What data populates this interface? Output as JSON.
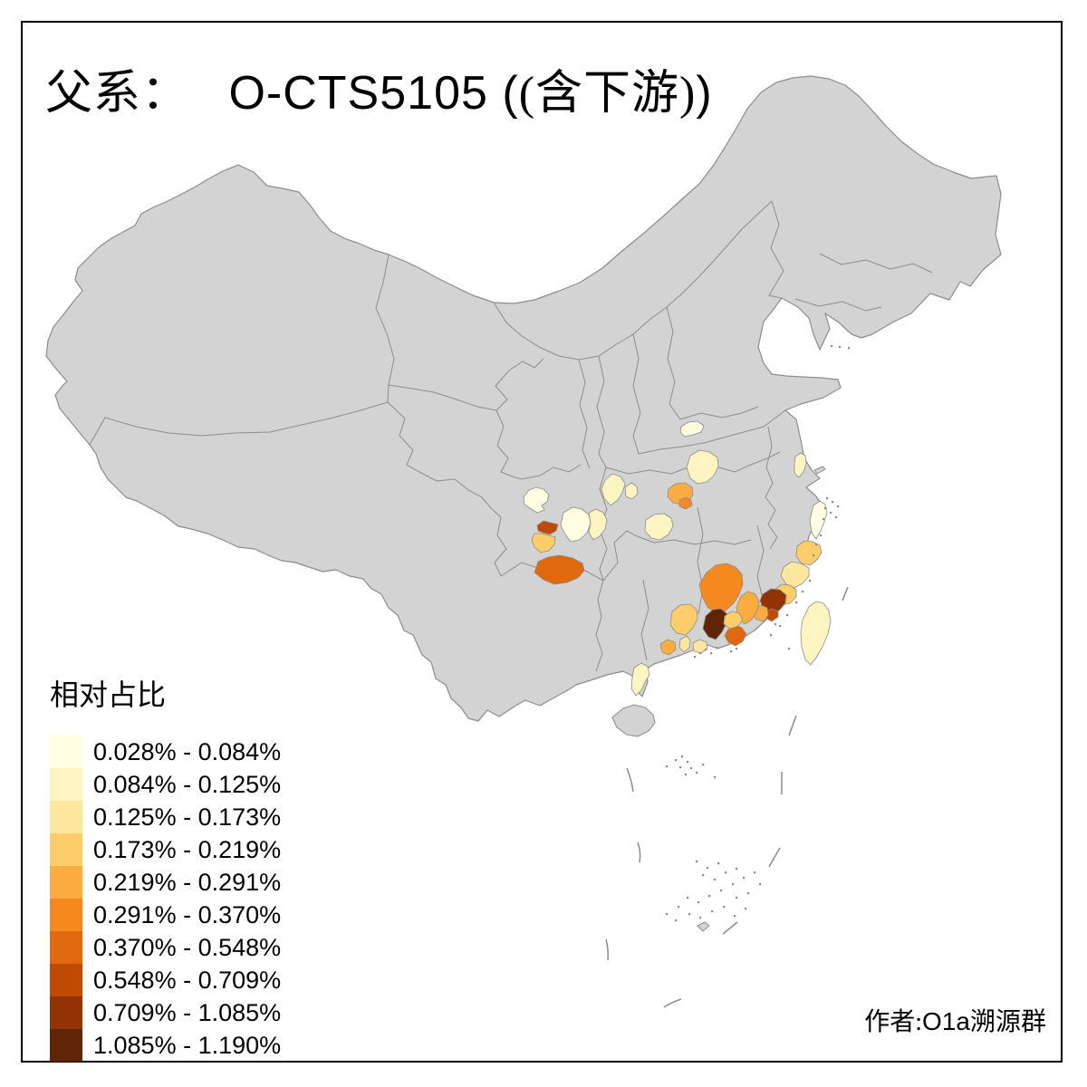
{
  "title": {
    "prefix": "父系：",
    "main": "O-CTS5105",
    "suffix": "(含下游)"
  },
  "legend": {
    "title": "相对占比",
    "classes": [
      {
        "range": "0.028% - 0.084%",
        "color": "#FFFEE3"
      },
      {
        "range": "0.084% - 0.125%",
        "color": "#FDF5C1"
      },
      {
        "range": "0.125% - 0.173%",
        "color": "#FDE69E"
      },
      {
        "range": "0.173% - 0.219%",
        "color": "#FDCD6B"
      },
      {
        "range": "0.219% - 0.291%",
        "color": "#FDAD40"
      },
      {
        "range": "0.291% - 0.370%",
        "color": "#F5881F"
      },
      {
        "range": "0.370% - 0.548%",
        "color": "#E0680F"
      },
      {
        "range": "0.548% - 0.709%",
        "color": "#C14A02"
      },
      {
        "range": "0.709% - 1.085%",
        "color": "#923305"
      },
      {
        "range": "1.085% - 1.190%",
        "color": "#602407"
      }
    ]
  },
  "credit": {
    "prefix": "作者:",
    "main": "O1a",
    "suffix": "溯源群"
  },
  "map": {
    "land_fill": "#D3D3D3",
    "border_color": "#8C8C8C",
    "sea_color": "#FFFFFF",
    "regions": [
      {
        "id": "r1",
        "class": 1,
        "range": "0.028% - 0.084%"
      },
      {
        "id": "r2",
        "class": 8,
        "range": "0.548% - 0.709%"
      },
      {
        "id": "r3",
        "class": 4,
        "range": "0.173% - 0.219%"
      },
      {
        "id": "r4",
        "class": 7,
        "range": "0.370% - 0.548%"
      },
      {
        "id": "r5",
        "class": 1,
        "range": "0.028% - 0.084%"
      },
      {
        "id": "r6",
        "class": 2,
        "range": "0.084% - 0.125%"
      },
      {
        "id": "r7",
        "class": 2,
        "range": "0.084% - 0.125%"
      },
      {
        "id": "r8",
        "class": 1,
        "range": "0.028% - 0.084%"
      },
      {
        "id": "r9",
        "class": 2,
        "range": "0.084% - 0.125%"
      },
      {
        "id": "r10",
        "class": 5,
        "range": "0.219% - 0.291%"
      },
      {
        "id": "r11",
        "class": 6,
        "range": "0.291% - 0.370%"
      },
      {
        "id": "r12",
        "class": 2,
        "range": "0.084% - 0.125%"
      },
      {
        "id": "r13",
        "class": 2,
        "range": "0.084% - 0.125%"
      },
      {
        "id": "r14",
        "class": 2,
        "range": "0.084% - 0.125%"
      },
      {
        "id": "r15",
        "class": 1,
        "range": "0.028% - 0.084%"
      },
      {
        "id": "r16",
        "class": 4,
        "range": "0.173% - 0.219%"
      },
      {
        "id": "r17",
        "class": 3,
        "range": "0.125% - 0.173%"
      },
      {
        "id": "r18",
        "class": 4,
        "range": "0.173% - 0.219%"
      },
      {
        "id": "r19",
        "class": 9,
        "range": "0.709% - 1.085%"
      },
      {
        "id": "r20",
        "class": 8,
        "range": "0.548% - 0.709%"
      },
      {
        "id": "r21",
        "class": 5,
        "range": "0.219% - 0.291%"
      },
      {
        "id": "r22",
        "class": 6,
        "range": "0.291% - 0.370%"
      },
      {
        "id": "r23",
        "class": 5,
        "range": "0.219% - 0.291%"
      },
      {
        "id": "r24",
        "class": 10,
        "range": "1.085% - 1.190%"
      },
      {
        "id": "r25",
        "class": 7,
        "range": "0.370% - 0.548%"
      },
      {
        "id": "r26",
        "class": 4,
        "range": "0.173% - 0.219%"
      },
      {
        "id": "r27",
        "class": 4,
        "range": "0.173% - 0.219%"
      },
      {
        "id": "r28",
        "class": 5,
        "range": "0.219% - 0.291%"
      },
      {
        "id": "r29",
        "class": 3,
        "range": "0.125% - 0.173%"
      },
      {
        "id": "r30",
        "class": 3,
        "range": "0.125% - 0.173%"
      },
      {
        "id": "r31",
        "class": 2,
        "range": "0.084% - 0.125%"
      },
      {
        "id": "r32",
        "class": 2,
        "range": "0.084% - 0.125%"
      }
    ]
  }
}
